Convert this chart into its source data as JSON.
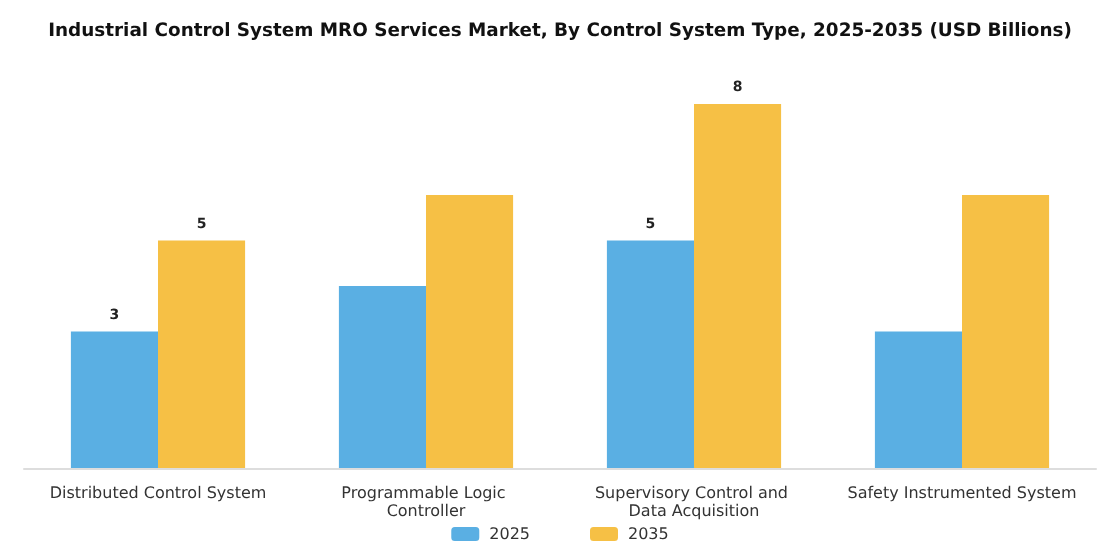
{
  "chart_data": {
    "type": "bar",
    "title": "Industrial Control System MRO Services Market, By Control System Type, 2025-2035 (USD Billions)",
    "categories": [
      "Distributed Control System",
      "Programmable Logic Controller",
      "Supervisory Control and Data Acquisition",
      "Safety Instrumented System"
    ],
    "series": [
      {
        "name": "2025",
        "color": "#5aafe3",
        "values": [
          3,
          4,
          5,
          3
        ],
        "value_labels": [
          "3",
          null,
          "5",
          null
        ]
      },
      {
        "name": "2035",
        "color": "#f6c045",
        "values": [
          5,
          6,
          8,
          6
        ],
        "value_labels": [
          "5",
          null,
          "8",
          null
        ]
      }
    ],
    "legend": "bottom"
  }
}
